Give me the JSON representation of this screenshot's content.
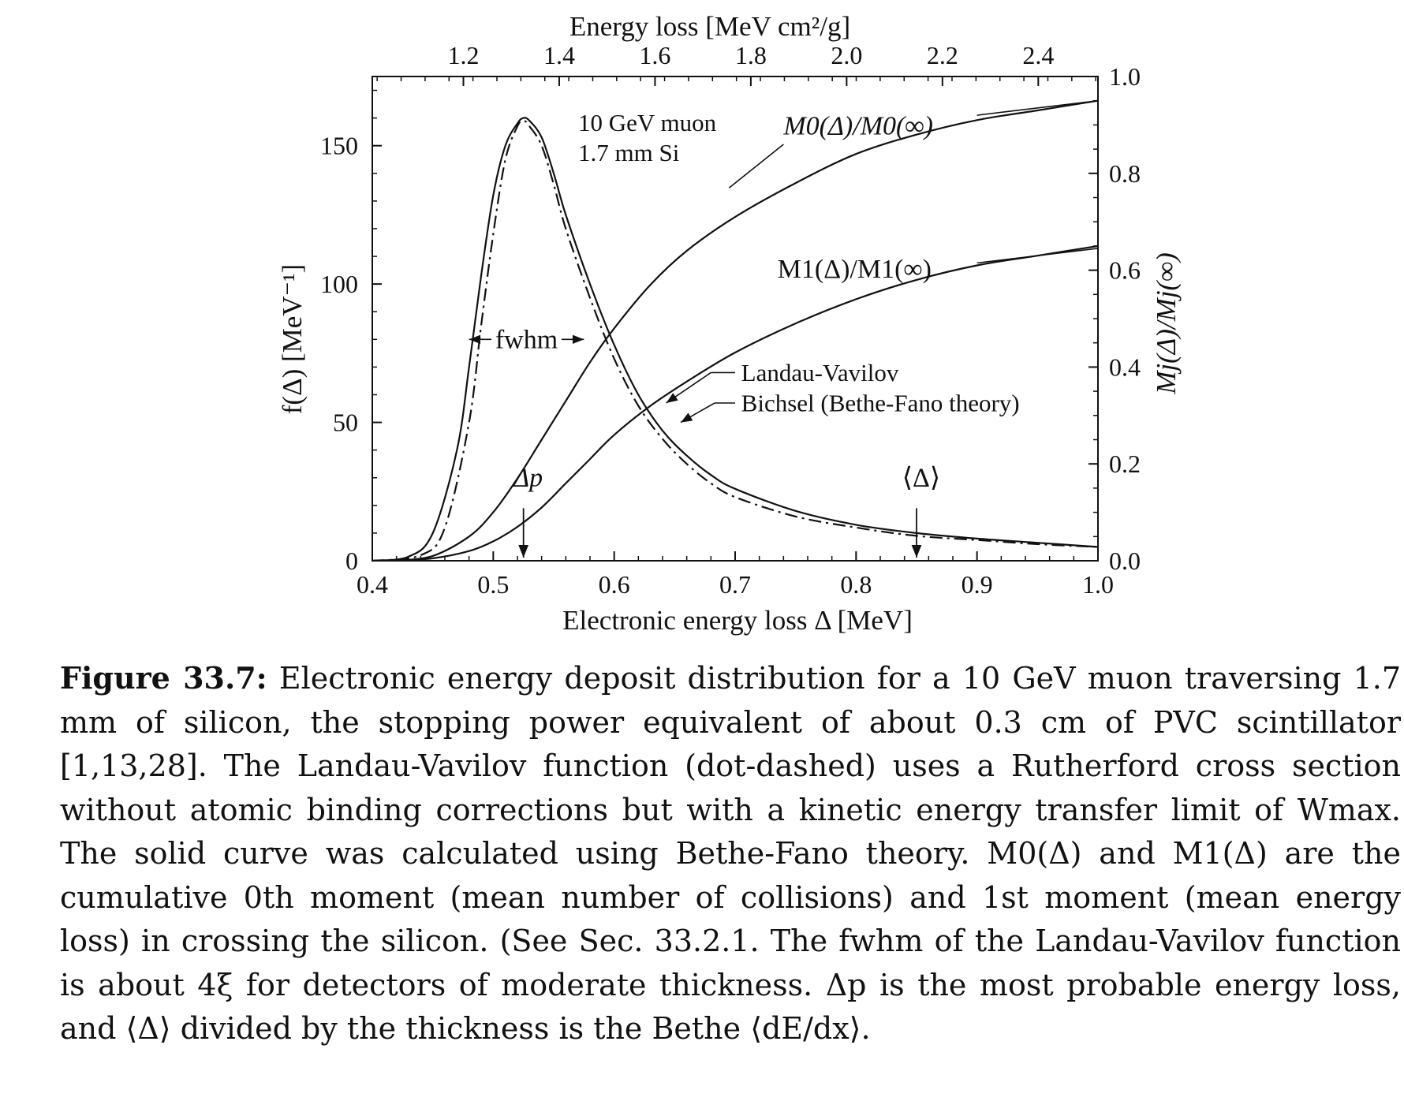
{
  "chart_data": {
    "type": "line",
    "annotation_lines": [
      "10 GeV muon",
      "1.7 mm Si"
    ],
    "xlabel": "Electronic energy loss Δ  [MeV]",
    "xlim": [
      0.4,
      1.0
    ],
    "xticks": [
      "0.4",
      "0.5",
      "0.6",
      "0.7",
      "0.8",
      "0.9",
      "1.0"
    ],
    "top_xlabel": "Energy loss  [MeV cm²/g]",
    "top_xticks": [
      "1.2",
      "1.4",
      "1.6",
      "1.8",
      "2.0",
      "2.2",
      "2.4"
    ],
    "ylabel": "f(Δ)  [MeV⁻¹]",
    "ylim": [
      0,
      175
    ],
    "yticks": [
      "0",
      "50",
      "100",
      "150"
    ],
    "right_ylabel": "Mj(Δ)/Mj(∞)",
    "right_ylim": [
      0,
      1.0
    ],
    "right_yticks": [
      "0.0",
      "0.2",
      "0.4",
      "0.6",
      "0.8",
      "1.0"
    ],
    "series": [
      {
        "name": "Bichsel (Bethe-Fano theory)",
        "style": "solid",
        "axis": "left",
        "x": [
          0.4,
          0.43,
          0.45,
          0.47,
          0.48,
          0.49,
          0.5,
          0.51,
          0.52,
          0.525,
          0.53,
          0.54,
          0.55,
          0.56,
          0.58,
          0.6,
          0.62,
          0.64,
          0.66,
          0.68,
          0.7,
          0.75,
          0.8,
          0.85,
          0.9,
          0.95,
          1.0
        ],
        "y": [
          0,
          1.5,
          10,
          40,
          70,
          103,
          132,
          150,
          158,
          160,
          159,
          153,
          140,
          125,
          100,
          78,
          60,
          47,
          38,
          31,
          26,
          18,
          13,
          10,
          8,
          6.5,
          5
        ]
      },
      {
        "name": "Landau-Vavilov",
        "style": "dash-dot",
        "axis": "left",
        "x": [
          0.4,
          0.44,
          0.46,
          0.48,
          0.49,
          0.5,
          0.51,
          0.52,
          0.525,
          0.53,
          0.54,
          0.55,
          0.56,
          0.58,
          0.6,
          0.62,
          0.64,
          0.66,
          0.68,
          0.7,
          0.75,
          0.8,
          0.85,
          0.9,
          0.95,
          1.0
        ],
        "y": [
          0,
          2,
          12,
          50,
          85,
          118,
          145,
          157,
          159,
          157,
          150,
          136,
          120,
          95,
          73,
          56,
          44,
          35,
          28,
          23,
          16,
          12,
          9,
          7.5,
          6,
          5
        ]
      },
      {
        "name": "M0(Δ)/M0(∞)",
        "style": "solid",
        "axis": "right",
        "x": [
          0.42,
          0.45,
          0.48,
          0.5,
          0.52,
          0.54,
          0.56,
          0.58,
          0.6,
          0.63,
          0.66,
          0.7,
          0.75,
          0.8,
          0.85,
          0.9,
          0.95,
          1.0
        ],
        "y": [
          0.0,
          0.01,
          0.05,
          0.1,
          0.17,
          0.25,
          0.33,
          0.41,
          0.48,
          0.57,
          0.64,
          0.71,
          0.78,
          0.84,
          0.88,
          0.91,
          0.93,
          0.95
        ]
      },
      {
        "name": "M1(Δ)/M1(∞)",
        "style": "solid",
        "axis": "right",
        "x": [
          0.42,
          0.45,
          0.48,
          0.5,
          0.52,
          0.54,
          0.56,
          0.58,
          0.6,
          0.63,
          0.66,
          0.7,
          0.75,
          0.8,
          0.85,
          0.9,
          0.95,
          1.0
        ],
        "y": [
          0.0,
          0.005,
          0.02,
          0.04,
          0.07,
          0.11,
          0.16,
          0.21,
          0.26,
          0.32,
          0.37,
          0.43,
          0.49,
          0.54,
          0.58,
          0.61,
          0.63,
          0.65
        ]
      }
    ],
    "markers": [
      {
        "label": "Δp",
        "x": 0.525
      },
      {
        "label": "⟨Δ⟩",
        "x": 0.85
      }
    ],
    "fwhm": {
      "label": "fwhm",
      "x_left": 0.48,
      "x_right": 0.575,
      "y": 80
    }
  },
  "caption": {
    "label": "Figure 33.7:",
    "text": "Electronic energy deposit distribution for a 10 GeV muon traversing 1.7 mm of silicon, the stopping power equivalent of about 0.3 cm of PVC scintillator [1,13,28]. The Landau-Vavilov function (dot-dashed) uses a Rutherford cross section without atomic binding corrections but with a kinetic energy transfer limit of Wmax. The solid curve was calculated using Bethe-Fano theory. M0(Δ) and M1(Δ) are the cumulative 0th moment (mean number of collisions) and 1st moment (mean energy loss) in crossing the silicon. (See Sec. 33.2.1. The fwhm of the Landau-Vavilov function is about 4ξ for detectors of moderate thickness. Δp is the most probable energy loss, and ⟨Δ⟩ divided by the thickness is the Bethe ⟨dE/dx⟩."
  }
}
